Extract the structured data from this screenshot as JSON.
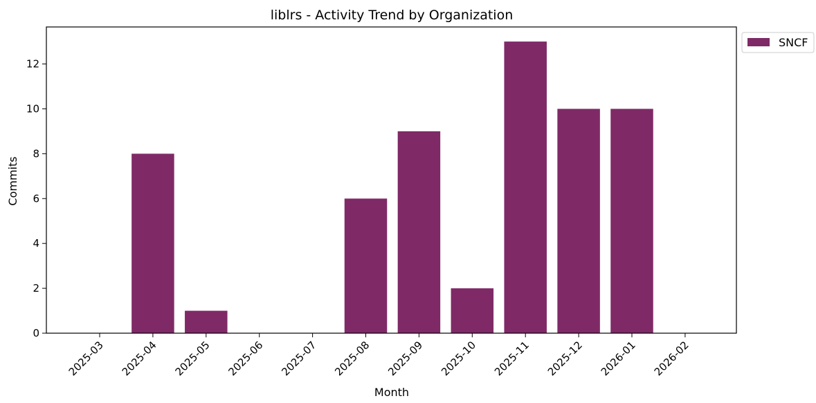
{
  "chart_data": {
    "type": "bar",
    "title": "liblrs - Activity Trend by Organization",
    "xlabel": "Month",
    "ylabel": "Commits",
    "categories": [
      "2025-03",
      "2025-04",
      "2025-05",
      "2025-06",
      "2025-07",
      "2025-08",
      "2025-09",
      "2025-10",
      "2025-11",
      "2025-12",
      "2026-01",
      "2026-02"
    ],
    "series": [
      {
        "name": "SNCF",
        "color": "#7f2a67",
        "values": [
          0,
          8,
          1,
          0,
          0,
          6,
          9,
          2,
          13,
          10,
          10,
          0
        ]
      }
    ],
    "ylim": [
      0,
      13.65
    ],
    "yticks": [
      0,
      2,
      4,
      6,
      8,
      10,
      12
    ],
    "grid": false,
    "legend_position": "top-right"
  }
}
